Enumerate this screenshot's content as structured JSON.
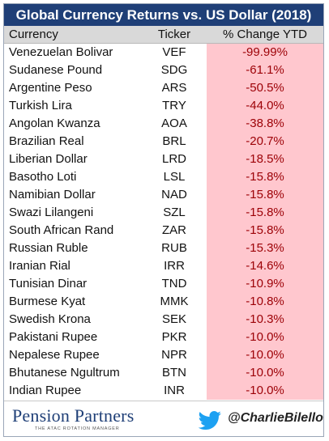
{
  "chart_data": {
    "type": "table",
    "title": "Global Currency Returns vs. US Dollar (2018)",
    "columns": [
      "Currency",
      "Ticker",
      "% Change YTD"
    ],
    "rows": [
      {
        "currency": "Venezuelan Bolivar",
        "ticker": "VEF",
        "change": "-99.99%"
      },
      {
        "currency": "Sudanese Pound",
        "ticker": "SDG",
        "change": "-61.1%"
      },
      {
        "currency": "Argentine Peso",
        "ticker": "ARS",
        "change": "-50.5%"
      },
      {
        "currency": "Turkish Lira",
        "ticker": "TRY",
        "change": "-44.0%"
      },
      {
        "currency": "Angolan Kwanza",
        "ticker": "AOA",
        "change": "-38.8%"
      },
      {
        "currency": "Brazilian Real",
        "ticker": "BRL",
        "change": "-20.7%"
      },
      {
        "currency": "Liberian Dollar",
        "ticker": "LRD",
        "change": "-18.5%"
      },
      {
        "currency": "Basotho Loti",
        "ticker": "LSL",
        "change": "-15.8%"
      },
      {
        "currency": "Namibian Dollar",
        "ticker": "NAD",
        "change": "-15.8%"
      },
      {
        "currency": "Swazi Lilangeni",
        "ticker": "SZL",
        "change": "-15.8%"
      },
      {
        "currency": "South African Rand",
        "ticker": "ZAR",
        "change": "-15.8%"
      },
      {
        "currency": "Russian Ruble",
        "ticker": "RUB",
        "change": "-15.3%"
      },
      {
        "currency": "Iranian Rial",
        "ticker": "IRR",
        "change": "-14.6%"
      },
      {
        "currency": "Tunisian Dinar",
        "ticker": "TND",
        "change": "-10.9%"
      },
      {
        "currency": "Burmese Kyat",
        "ticker": "MMK",
        "change": "-10.8%"
      },
      {
        "currency": "Swedish Krona",
        "ticker": "SEK",
        "change": "-10.3%"
      },
      {
        "currency": "Pakistani Rupee",
        "ticker": "PKR",
        "change": "-10.0%"
      },
      {
        "currency": "Nepalese Rupee",
        "ticker": "NPR",
        "change": "-10.0%"
      },
      {
        "currency": "Bhutanese Ngultrum",
        "ticker": "BTN",
        "change": "-10.0%"
      },
      {
        "currency": "Indian Rupee",
        "ticker": "INR",
        "change": "-10.0%"
      }
    ]
  },
  "footer": {
    "logo": "Pension Partners",
    "tagline": "THE ATAC ROTATION MANAGER",
    "handle": "@CharlieBilello",
    "icon": "twitter-bird-icon"
  },
  "colors": {
    "title_bg": "#1f3f77",
    "header_bg": "#d9d9d9",
    "negative_fill": "#ffc7ce",
    "negative_text": "#9c0006"
  }
}
